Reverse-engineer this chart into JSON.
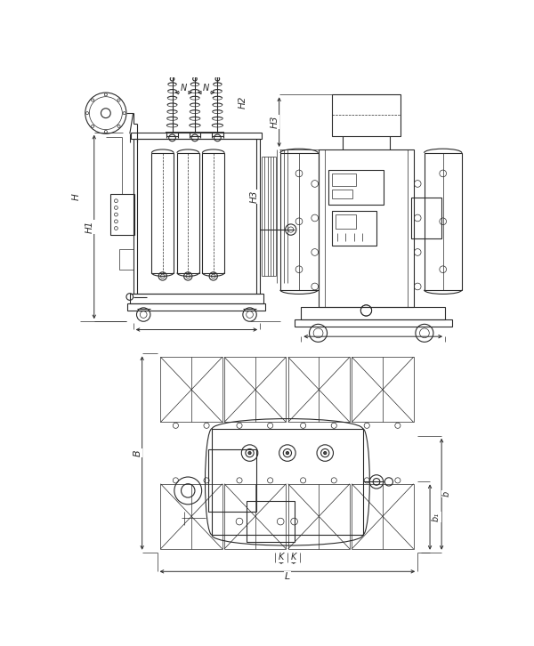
{
  "bg_color": "#ffffff",
  "lc": "#2a2a2a",
  "lw": 0.8,
  "tlw": 0.5,
  "dc": "#2a2a2a",
  "fig_w": 6.0,
  "fig_h": 7.26,
  "dpi": 100,
  "labels": {
    "H": "H",
    "H1": "H1",
    "H2": "H2",
    "H3": "H3",
    "N": "N",
    "B": "B",
    "b": "b",
    "b1": "b₁",
    "K": "K",
    "L": "L"
  }
}
